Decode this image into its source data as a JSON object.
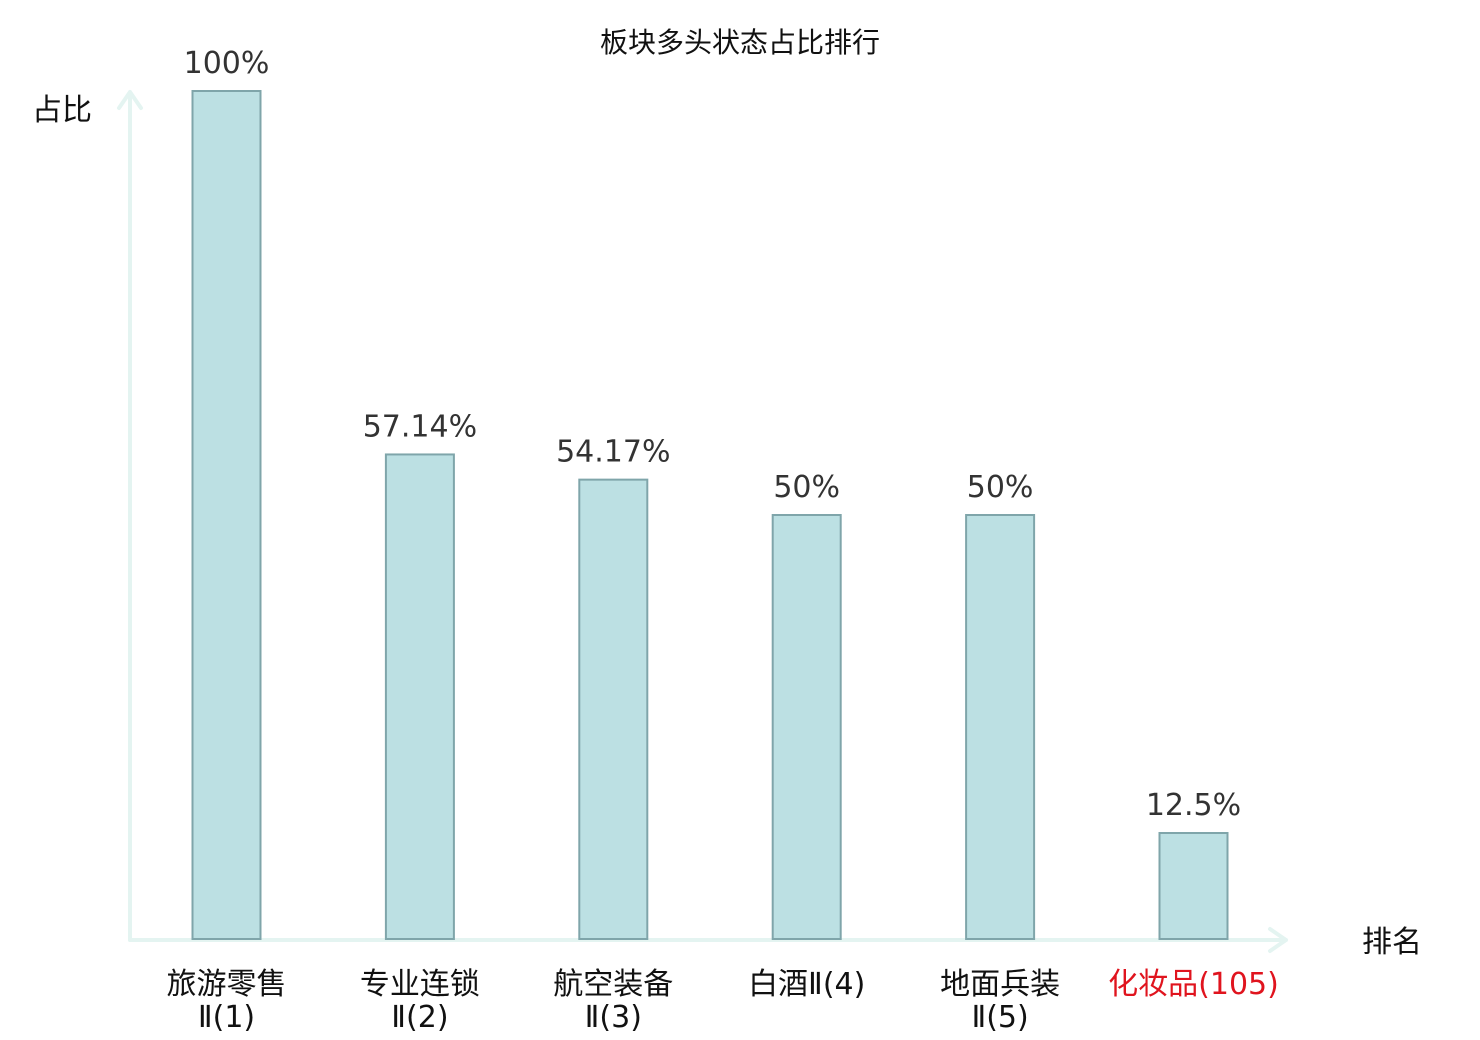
{
  "chart_data": {
    "type": "bar",
    "title": "板块多头状态占比排行",
    "ylabel": "占比",
    "xlabel": "排名",
    "categories": [
      [
        "旅游零售",
        "Ⅱ(1)"
      ],
      [
        "专业连锁",
        "Ⅱ(2)"
      ],
      [
        "航空装备",
        "Ⅱ(3)"
      ],
      [
        "白酒Ⅱ(4)"
      ],
      [
        "地面兵装",
        "Ⅱ(5)"
      ],
      [
        "化妆品(105)"
      ]
    ],
    "values": [
      100,
      57.14,
      54.17,
      50,
      50,
      12.5
    ],
    "value_labels": [
      "100%",
      "57.14%",
      "54.17%",
      "50%",
      "50%",
      "12.5%"
    ],
    "highlight_index": 5,
    "ylim": [
      0,
      100
    ],
    "grid": false,
    "colors": {
      "bar_fill": "#bce0e3",
      "bar_stroke": "#7fa5aa",
      "axis": "#e4f4f1",
      "highlight_text": "#e0141e"
    }
  }
}
